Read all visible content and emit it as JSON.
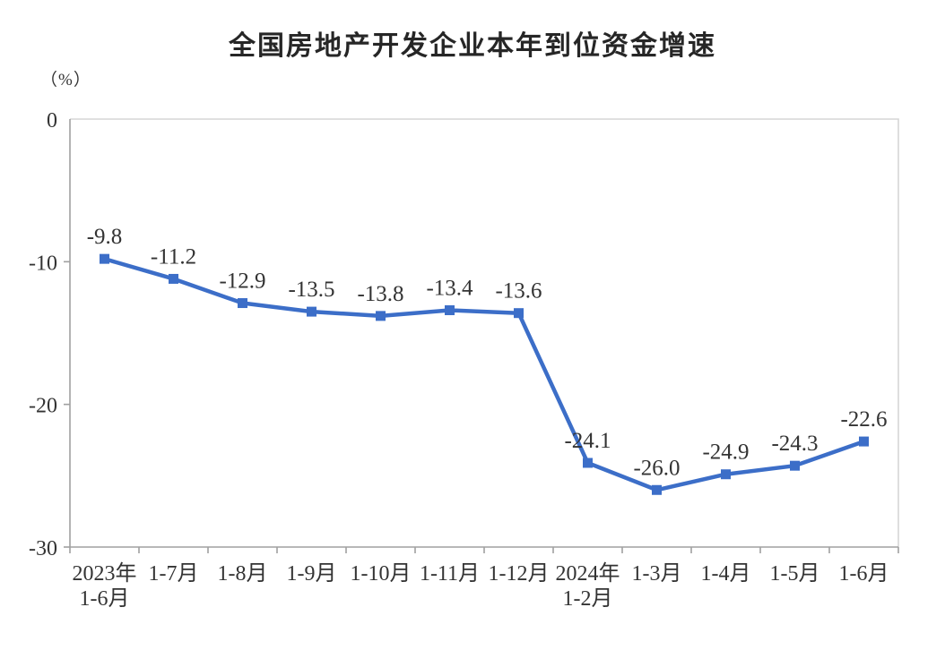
{
  "chart_data": {
    "type": "line",
    "title": "全国房地产开发企业本年到位资金增速",
    "unit": "（%）",
    "categories": [
      "2023年 1-6月",
      "1-7月",
      "1-8月",
      "1-9月",
      "1-10月",
      "1-11月",
      "1-12月",
      "2024年 1-2月",
      "1-3月",
      "1-4月",
      "1-5月",
      "1-6月"
    ],
    "values": [
      -9.8,
      -11.2,
      -12.9,
      -13.5,
      -13.8,
      -13.4,
      -13.6,
      -24.1,
      -26.0,
      -24.9,
      -24.3,
      -22.6
    ],
    "value_labels": [
      "-9.8",
      "-11.2",
      "-12.9",
      "-13.5",
      "-13.8",
      "-13.4",
      "-13.6",
      "-24.1",
      "-26.0",
      "-24.9",
      "-24.3",
      "-22.6"
    ],
    "series_name": "本年到位资金增速",
    "xlabel": "",
    "ylabel": "（%）",
    "ylim": [
      -30,
      0
    ],
    "yticks": [
      0,
      -10,
      -20,
      -30
    ],
    "ytick_labels": [
      "0",
      "-10",
      "-20",
      "-30"
    ],
    "grid": false,
    "legend": "none",
    "marker": "square",
    "line_color": "#3C6EC8",
    "label_color": "#333333",
    "axis_color": "#A0A0A0",
    "frame_color": "#D6D6D6"
  }
}
